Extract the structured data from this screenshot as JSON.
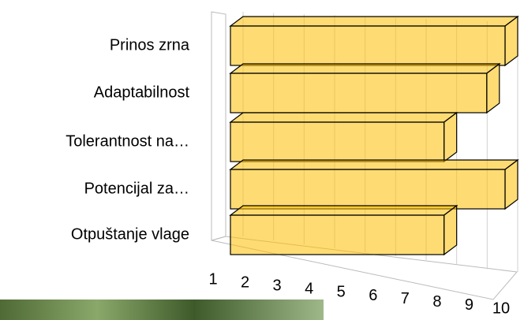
{
  "chart_data": {
    "type": "bar",
    "orientation": "horizontal",
    "three_d": true,
    "categories": [
      "Prinos zrna",
      "Adaptabilnost",
      "Tolerantnost na…",
      "Potencijal za…",
      "Otpuštanje vlage"
    ],
    "values": [
      10,
      9.4,
      8,
      10,
      8
    ],
    "color": "#ffc000",
    "xlim": [
      1,
      10
    ],
    "xticks": [
      1,
      2,
      3,
      4,
      5,
      6,
      7,
      8,
      9,
      10
    ],
    "grid": true
  }
}
